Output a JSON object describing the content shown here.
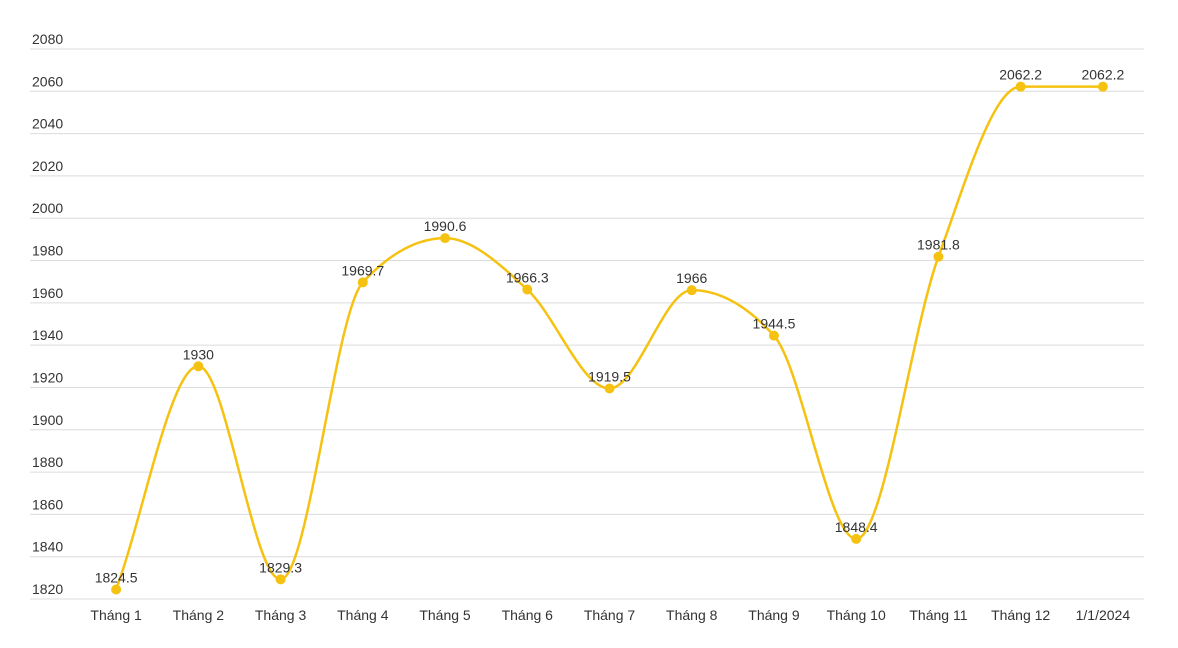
{
  "chart_data": {
    "type": "line",
    "categories": [
      "Tháng 1",
      "Tháng 2",
      "Tháng 3",
      "Tháng 4",
      "Tháng 5",
      "Tháng 6",
      "Tháng 7",
      "Tháng 8",
      "Tháng 9",
      "Tháng 10",
      "Tháng 11",
      "Tháng 12",
      "1/1/2024"
    ],
    "series": [
      {
        "color": "#f5c211",
        "values": [
          1824.5,
          1930,
          1829.3,
          1969.7,
          1990.6,
          1966.3,
          1919.5,
          1966,
          1944.5,
          1848.4,
          1981.8,
          2062.2,
          2062.2
        ]
      }
    ],
    "ylim": [
      1820,
      2080
    ],
    "yticks": [
      1820,
      1840,
      1860,
      1880,
      1900,
      1920,
      1940,
      1960,
      1980,
      2000,
      2020,
      2040,
      2060,
      2080
    ],
    "grid": true,
    "curve": "smooth"
  }
}
